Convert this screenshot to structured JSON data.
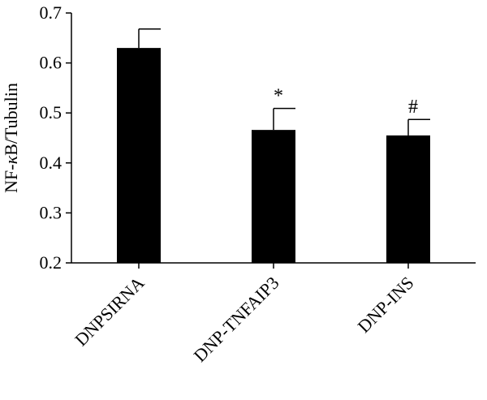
{
  "chart_data": {
    "type": "bar",
    "title": "",
    "xlabel": "",
    "ylabel_parts": [
      "NF-",
      "κ",
      "B/Tubulin"
    ],
    "ylim": [
      0.2,
      0.7
    ],
    "yticks": [
      "0.2",
      "0.3",
      "0.4",
      "0.5",
      "0.6",
      "0.7"
    ],
    "categories": [
      "DNPSIRNA",
      "DNP-TNFAIP3",
      "DNP-INS"
    ],
    "values": [
      0.63,
      0.466,
      0.455
    ],
    "errors": [
      0.038,
      0.043,
      0.032
    ],
    "annotations": [
      "",
      "*",
      "#"
    ],
    "grid": false,
    "bar_color": "#000000"
  }
}
